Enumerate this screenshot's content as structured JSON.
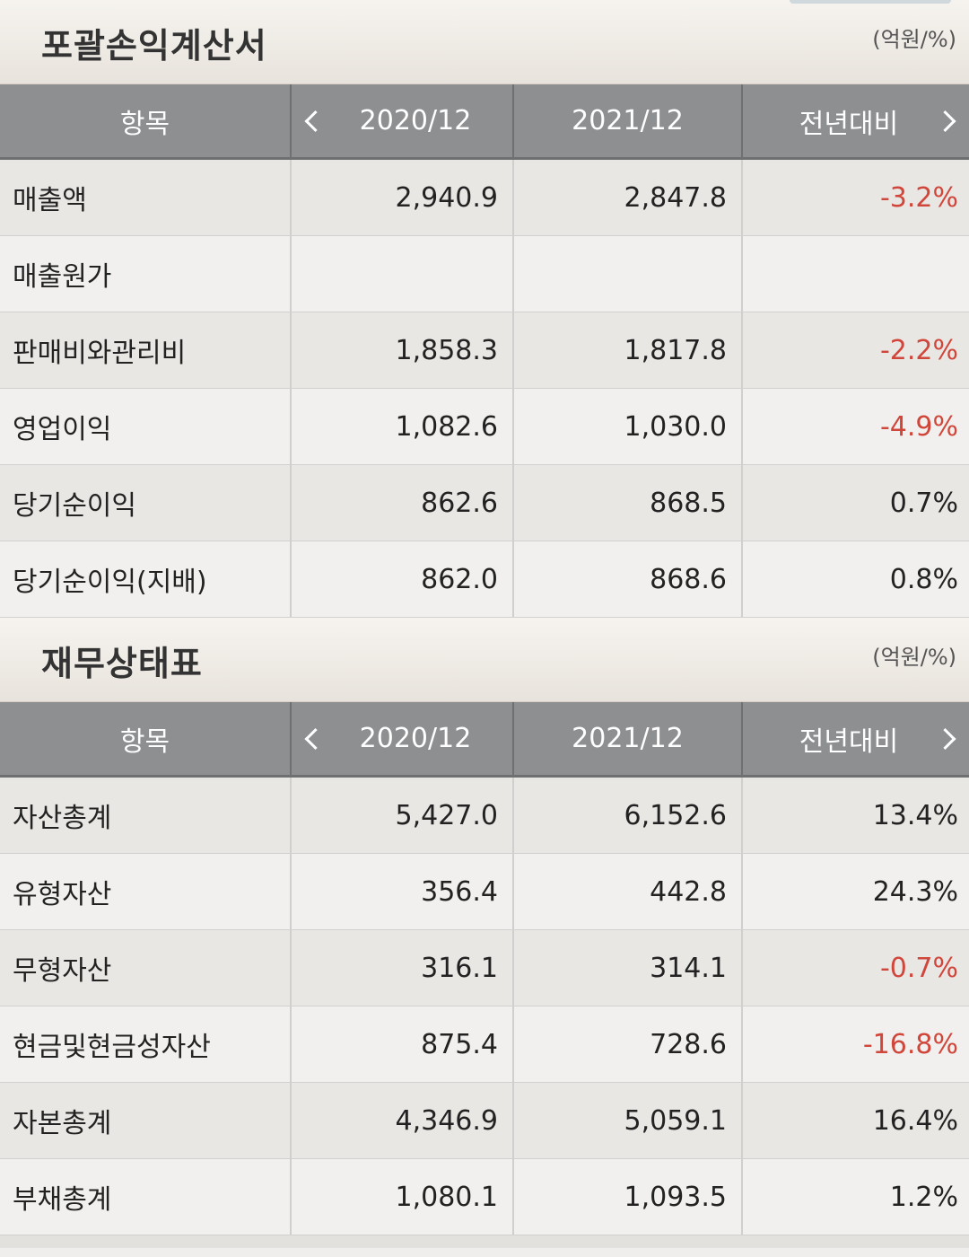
{
  "income": {
    "title": "포괄손익계산서",
    "unit": "(억원/%)",
    "headers": {
      "item": "항목",
      "y1": "2020/12",
      "y2": "2021/12",
      "yoy": "전년대비"
    },
    "rows": [
      {
        "label": "매출액",
        "v1": "2,940.9",
        "v2": "2,847.8",
        "yoy": "-3.2%"
      },
      {
        "label": "매출원가",
        "v1": "",
        "v2": "",
        "yoy": ""
      },
      {
        "label": "판매비와관리비",
        "v1": "1,858.3",
        "v2": "1,817.8",
        "yoy": "-2.2%"
      },
      {
        "label": "영업이익",
        "v1": "1,082.6",
        "v2": "1,030.0",
        "yoy": "-4.9%"
      },
      {
        "label": "당기순이익",
        "v1": "862.6",
        "v2": "868.5",
        "yoy": "0.7%"
      },
      {
        "label": "당기순이익(지배)",
        "v1": "862.0",
        "v2": "868.6",
        "yoy": "0.8%"
      }
    ]
  },
  "balance": {
    "title": "재무상태표",
    "unit": "(억원/%)",
    "headers": {
      "item": "항목",
      "y1": "2020/12",
      "y2": "2021/12",
      "yoy": "전년대비"
    },
    "rows": [
      {
        "label": "자산총계",
        "v1": "5,427.0",
        "v2": "6,152.6",
        "yoy": "13.4%"
      },
      {
        "label": "유형자산",
        "v1": "356.4",
        "v2": "442.8",
        "yoy": "24.3%"
      },
      {
        "label": "무형자산",
        "v1": "316.1",
        "v2": "314.1",
        "yoy": "-0.7%"
      },
      {
        "label": "현금및현금성자산",
        "v1": "875.4",
        "v2": "728.6",
        "yoy": "-16.8%"
      },
      {
        "label": "자본총계",
        "v1": "4,346.9",
        "v2": "5,059.1",
        "yoy": "16.4%"
      },
      {
        "label": "부채총계",
        "v1": "1,080.1",
        "v2": "1,093.5",
        "yoy": "1.2%"
      }
    ]
  },
  "colors": {
    "negative": "#d0463b",
    "header_bg": "#8e8f91"
  }
}
